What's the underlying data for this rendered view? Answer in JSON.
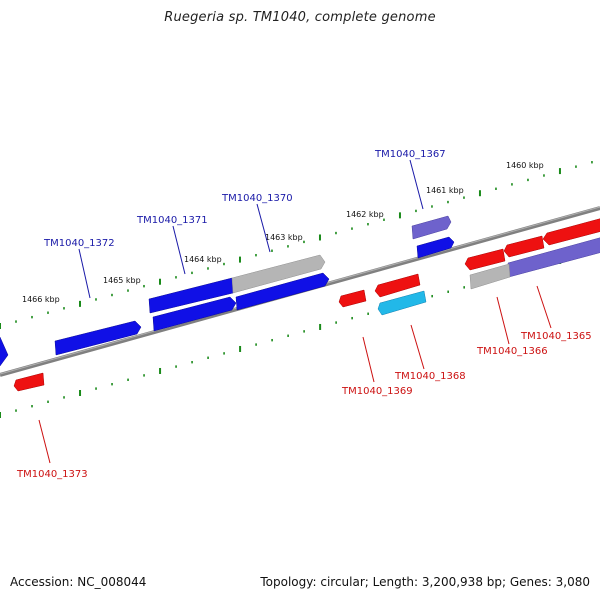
{
  "title": "Ruegeria sp. TM1040, complete genome",
  "footer": {
    "accession": "Accession: NC_008044",
    "summary": "Topology: circular; Length: 3,200,938 bp; Genes: 3,080"
  },
  "colors": {
    "forward_label": "#1a1aa8",
    "reverse_label": "#cc1111",
    "backbone": "#808080",
    "tick": "#1a8a1a",
    "gene_blue": "#1010e6",
    "gene_red": "#ee1111",
    "gene_gray": "#b5b5b5",
    "gene_purple": "#6e62cc",
    "gene_cyan": "#22b8e8"
  },
  "scale_labels": [
    "1466 kbp",
    "1465 kbp",
    "1464 kbp",
    "1463 kbp",
    "1462 kbp",
    "1461 kbp",
    "1460 kbp"
  ],
  "forward_labels": [
    "TM1040_1372",
    "TM1040_1371",
    "TM1040_1370",
    "TM1040_1367"
  ],
  "reverse_labels": [
    "TM1040_1373",
    "TM1040_1369",
    "TM1040_1368",
    "TM1040_1366",
    "TM1040_1365"
  ]
}
